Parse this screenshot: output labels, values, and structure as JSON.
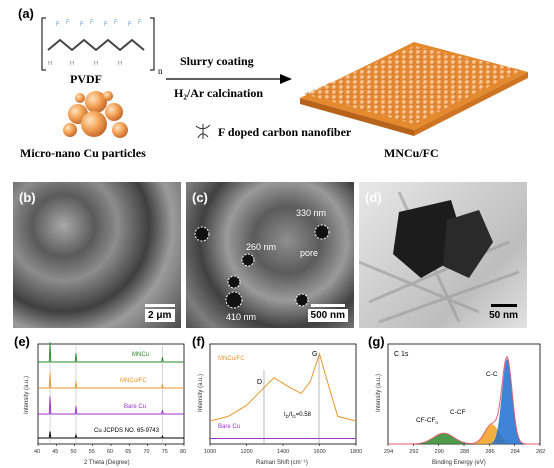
{
  "panel_labels": {
    "a": "(a)",
    "b": "(b)",
    "c": "(c)",
    "d": "(d)",
    "e": "(e)",
    "f": "(f)",
    "g": "(g)"
  },
  "schematic": {
    "pvdf_label": "PVDF",
    "pvdf_subscript": "n",
    "pvdf_f_atom": "F",
    "pvdf_h_atom": "H",
    "cu_label": "Micro-nano Cu particles",
    "process_top": "Slurry coating",
    "process_bottom": "H₂/Ar calcination",
    "fiber_label": "F doped carbon nanofiber",
    "product_label": "MNCu/FC"
  },
  "images": {
    "b_scale": "2 μm",
    "c_scale": "500 nm",
    "d_scale": "50 nm",
    "c_annotations": [
      "330 nm",
      "260 nm",
      "pore",
      "410 nm"
    ]
  },
  "chart_data": [
    {
      "panel": "e",
      "type": "line",
      "xlabel": "2 Theta (Degree)",
      "ylabel": "Intensity (a.u.)",
      "xlim": [
        40,
        80
      ],
      "xticks": [
        "40",
        "45",
        "50",
        "55",
        "60",
        "65",
        "70",
        "75",
        "80"
      ],
      "series": [
        {
          "name": "MNCu",
          "color": "#2a8a2a",
          "peaks": [
            [
              43.3,
              90
            ],
            [
              50.4,
              40
            ],
            [
              74.1,
              22
            ]
          ]
        },
        {
          "name": "MNCu/FC",
          "color": "#e8962a",
          "peaks": [
            [
              43.3,
              70
            ],
            [
              50.4,
              30
            ],
            [
              74.1,
              16
            ]
          ]
        },
        {
          "name": "Bare Cu",
          "color": "#9b30c8",
          "peaks": [
            [
              43.3,
              80
            ],
            [
              50.4,
              35
            ],
            [
              74.1,
              18
            ]
          ]
        },
        {
          "name": "Cu JCPDS NO. 65-9743",
          "color": "#000000",
          "peaks": [
            [
              43.3,
              30
            ],
            [
              50.4,
              14
            ],
            [
              74.1,
              9
            ]
          ]
        }
      ],
      "reference_lines": [
        43.3,
        50.4,
        74.1
      ]
    },
    {
      "panel": "f",
      "type": "line",
      "xlabel": "Raman Shift (cm⁻¹)",
      "ylabel": "Intensity (a.u.)",
      "xlim": [
        1000,
        1800
      ],
      "xticks": [
        "1000",
        "1200",
        "1400",
        "1600",
        "1800"
      ],
      "series": [
        {
          "name": "MNCu/FC",
          "color": "#e8962a",
          "points": [
            [
              1000,
              0.25
            ],
            [
              1100,
              0.3
            ],
            [
              1200,
              0.42
            ],
            [
              1300,
              0.62
            ],
            [
              1350,
              0.72
            ],
            [
              1400,
              0.66
            ],
            [
              1450,
              0.6
            ],
            [
              1500,
              0.55
            ],
            [
              1550,
              0.68
            ],
            [
              1600,
              0.98
            ],
            [
              1640,
              0.7
            ],
            [
              1700,
              0.3
            ],
            [
              1800,
              0.25
            ]
          ]
        },
        {
          "name": "Bare Cu",
          "color": "#9b30c8",
          "points": [
            [
              1000,
              0.06
            ],
            [
              1400,
              0.06
            ],
            [
              1800,
              0.06
            ]
          ]
        }
      ],
      "peak_labels": [
        "D",
        "G"
      ],
      "ratio_label": "I",
      "ratio_sub1": "D",
      "ratio_mid": "/I",
      "ratio_sub2": "G",
      "ratio_value": "=0.58"
    },
    {
      "panel": "g",
      "type": "area",
      "title": "C 1s",
      "xlabel": "Binding Energy (eV)",
      "ylabel": "Intensity (a.u.)",
      "xlim": [
        294,
        282
      ],
      "xticks": [
        "294",
        "292",
        "290",
        "288",
        "286",
        "284",
        "282"
      ],
      "series": [
        {
          "name": "C-C",
          "color": "#1e6fd0",
          "center": 284.6,
          "height": 0.95,
          "width": 0.8
        },
        {
          "name": "C-CF",
          "color": "#f0a020",
          "center": 285.8,
          "height": 0.22,
          "width": 1.1
        },
        {
          "name": "CF-CFn",
          "color": "#2e8b2e",
          "center": 289.6,
          "height": 0.12,
          "width": 1.6
        }
      ],
      "envelope_color": "#e06070",
      "labels": {
        "cc": "C-C",
        "ccf": "C-CF",
        "cfcf": "CF-CF",
        "cfcf_sub": "n"
      }
    }
  ]
}
